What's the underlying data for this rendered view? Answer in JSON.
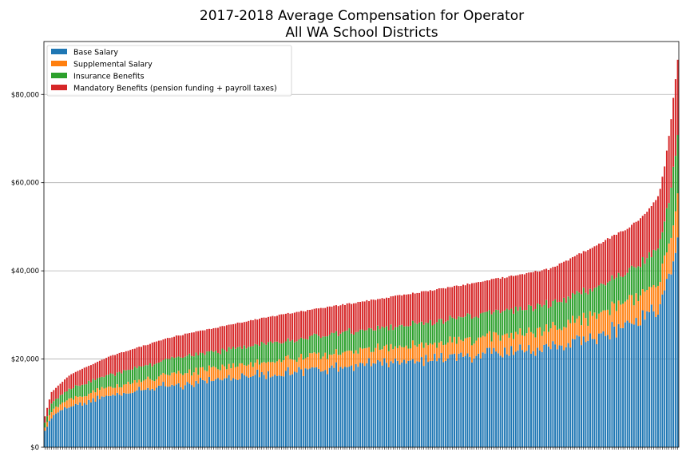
{
  "chart_data": {
    "type": "bar",
    "stacked": true,
    "title": "2017-2018 Average Compensation for Operator",
    "subtitle": "All WA School Districts",
    "xlabel": "",
    "ylabel": "",
    "ylim": [
      0,
      92000
    ],
    "y_ticks": [
      0,
      20000,
      40000,
      60000,
      80000
    ],
    "y_tick_labels": [
      "$0",
      "$20,000",
      "$40,000",
      "$60,000",
      "$80,000"
    ],
    "grid": true,
    "legend_position": "top-left",
    "n_districts": 290,
    "sort": "ascending by total",
    "total_profile": {
      "x_fraction": [
        0,
        0.01,
        0.04,
        0.1,
        0.2,
        0.35,
        0.5,
        0.65,
        0.8,
        0.88,
        0.92,
        0.95,
        0.97,
        0.98,
        0.99,
        1.0
      ],
      "total": [
        7000,
        12500,
        16500,
        20500,
        25000,
        29500,
        33000,
        36500,
        40500,
        46500,
        49500,
        53000,
        57000,
        64000,
        75000,
        88000
      ]
    },
    "component_shares": {
      "base": 0.56,
      "supplemental": 0.1,
      "insurance": 0.14,
      "mandatory": 0.2
    },
    "series": [
      {
        "name": "Base Salary",
        "color": "#1f77b4",
        "key": "base"
      },
      {
        "name": "Supplemental Salary",
        "color": "#ff7f0e",
        "key": "supplemental"
      },
      {
        "name": "Insurance Benefits",
        "color": "#2ca02c",
        "key": "insurance"
      },
      {
        "name": "Mandatory Benefits (pension funding + payroll taxes)",
        "color": "#d62728",
        "key": "mandatory"
      }
    ]
  }
}
